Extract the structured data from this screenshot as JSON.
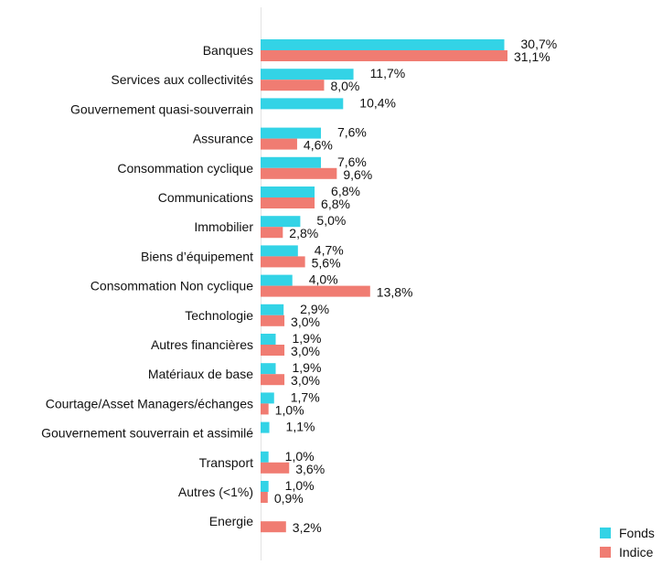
{
  "chart_data": {
    "type": "bar",
    "orientation": "horizontal",
    "categories": [
      "Banques",
      "Services aux collectivités",
      "Gouvernement quasi-souverrain",
      "Assurance",
      "Consommation cyclique",
      "Communications",
      "Immobilier",
      "Biens d’équipement",
      "Consommation Non cyclique",
      "Technologie",
      "Autres financières",
      "Matériaux de base",
      "Courtage/Asset Managers/échanges",
      "Gouvernement souverrain et assimilé",
      "Transport",
      "Autres (<1%)",
      "Energie"
    ],
    "series": [
      {
        "name": "Fonds",
        "color": "#33d3e6",
        "values": [
          30.7,
          11.7,
          10.4,
          7.6,
          7.6,
          6.8,
          5.0,
          4.7,
          4.0,
          2.9,
          1.9,
          1.9,
          1.7,
          1.1,
          1.0,
          1.0,
          null
        ],
        "labels": [
          "30,7%",
          "11,7%",
          "10,4%",
          "7,6%",
          "7,6%",
          "6,8%",
          "5,0%",
          "4,7%",
          "4,0%",
          "2,9%",
          "1,9%",
          "1,9%",
          "1,7%",
          "1,1%",
          "1,0%",
          "1,0%",
          null
        ]
      },
      {
        "name": "Indice",
        "color": "#f07c72",
        "values": [
          31.1,
          8.0,
          null,
          4.6,
          9.6,
          6.8,
          2.8,
          5.6,
          13.8,
          3.0,
          3.0,
          3.0,
          1.0,
          null,
          3.6,
          0.9,
          3.2
        ],
        "labels": [
          "31,1%",
          "8,0%",
          null,
          "4,6%",
          "9,6%",
          "6,8%",
          "2,8%",
          "5,6%",
          "13,8%",
          "3,0%",
          "3,0%",
          "3,0%",
          "1,0%",
          null,
          "3,6%",
          "0,9%",
          "3,2%"
        ]
      }
    ],
    "value_unit": "%",
    "xlim": [
      0,
      31.1
    ],
    "grid": false,
    "legend_position": "bottom-right"
  }
}
